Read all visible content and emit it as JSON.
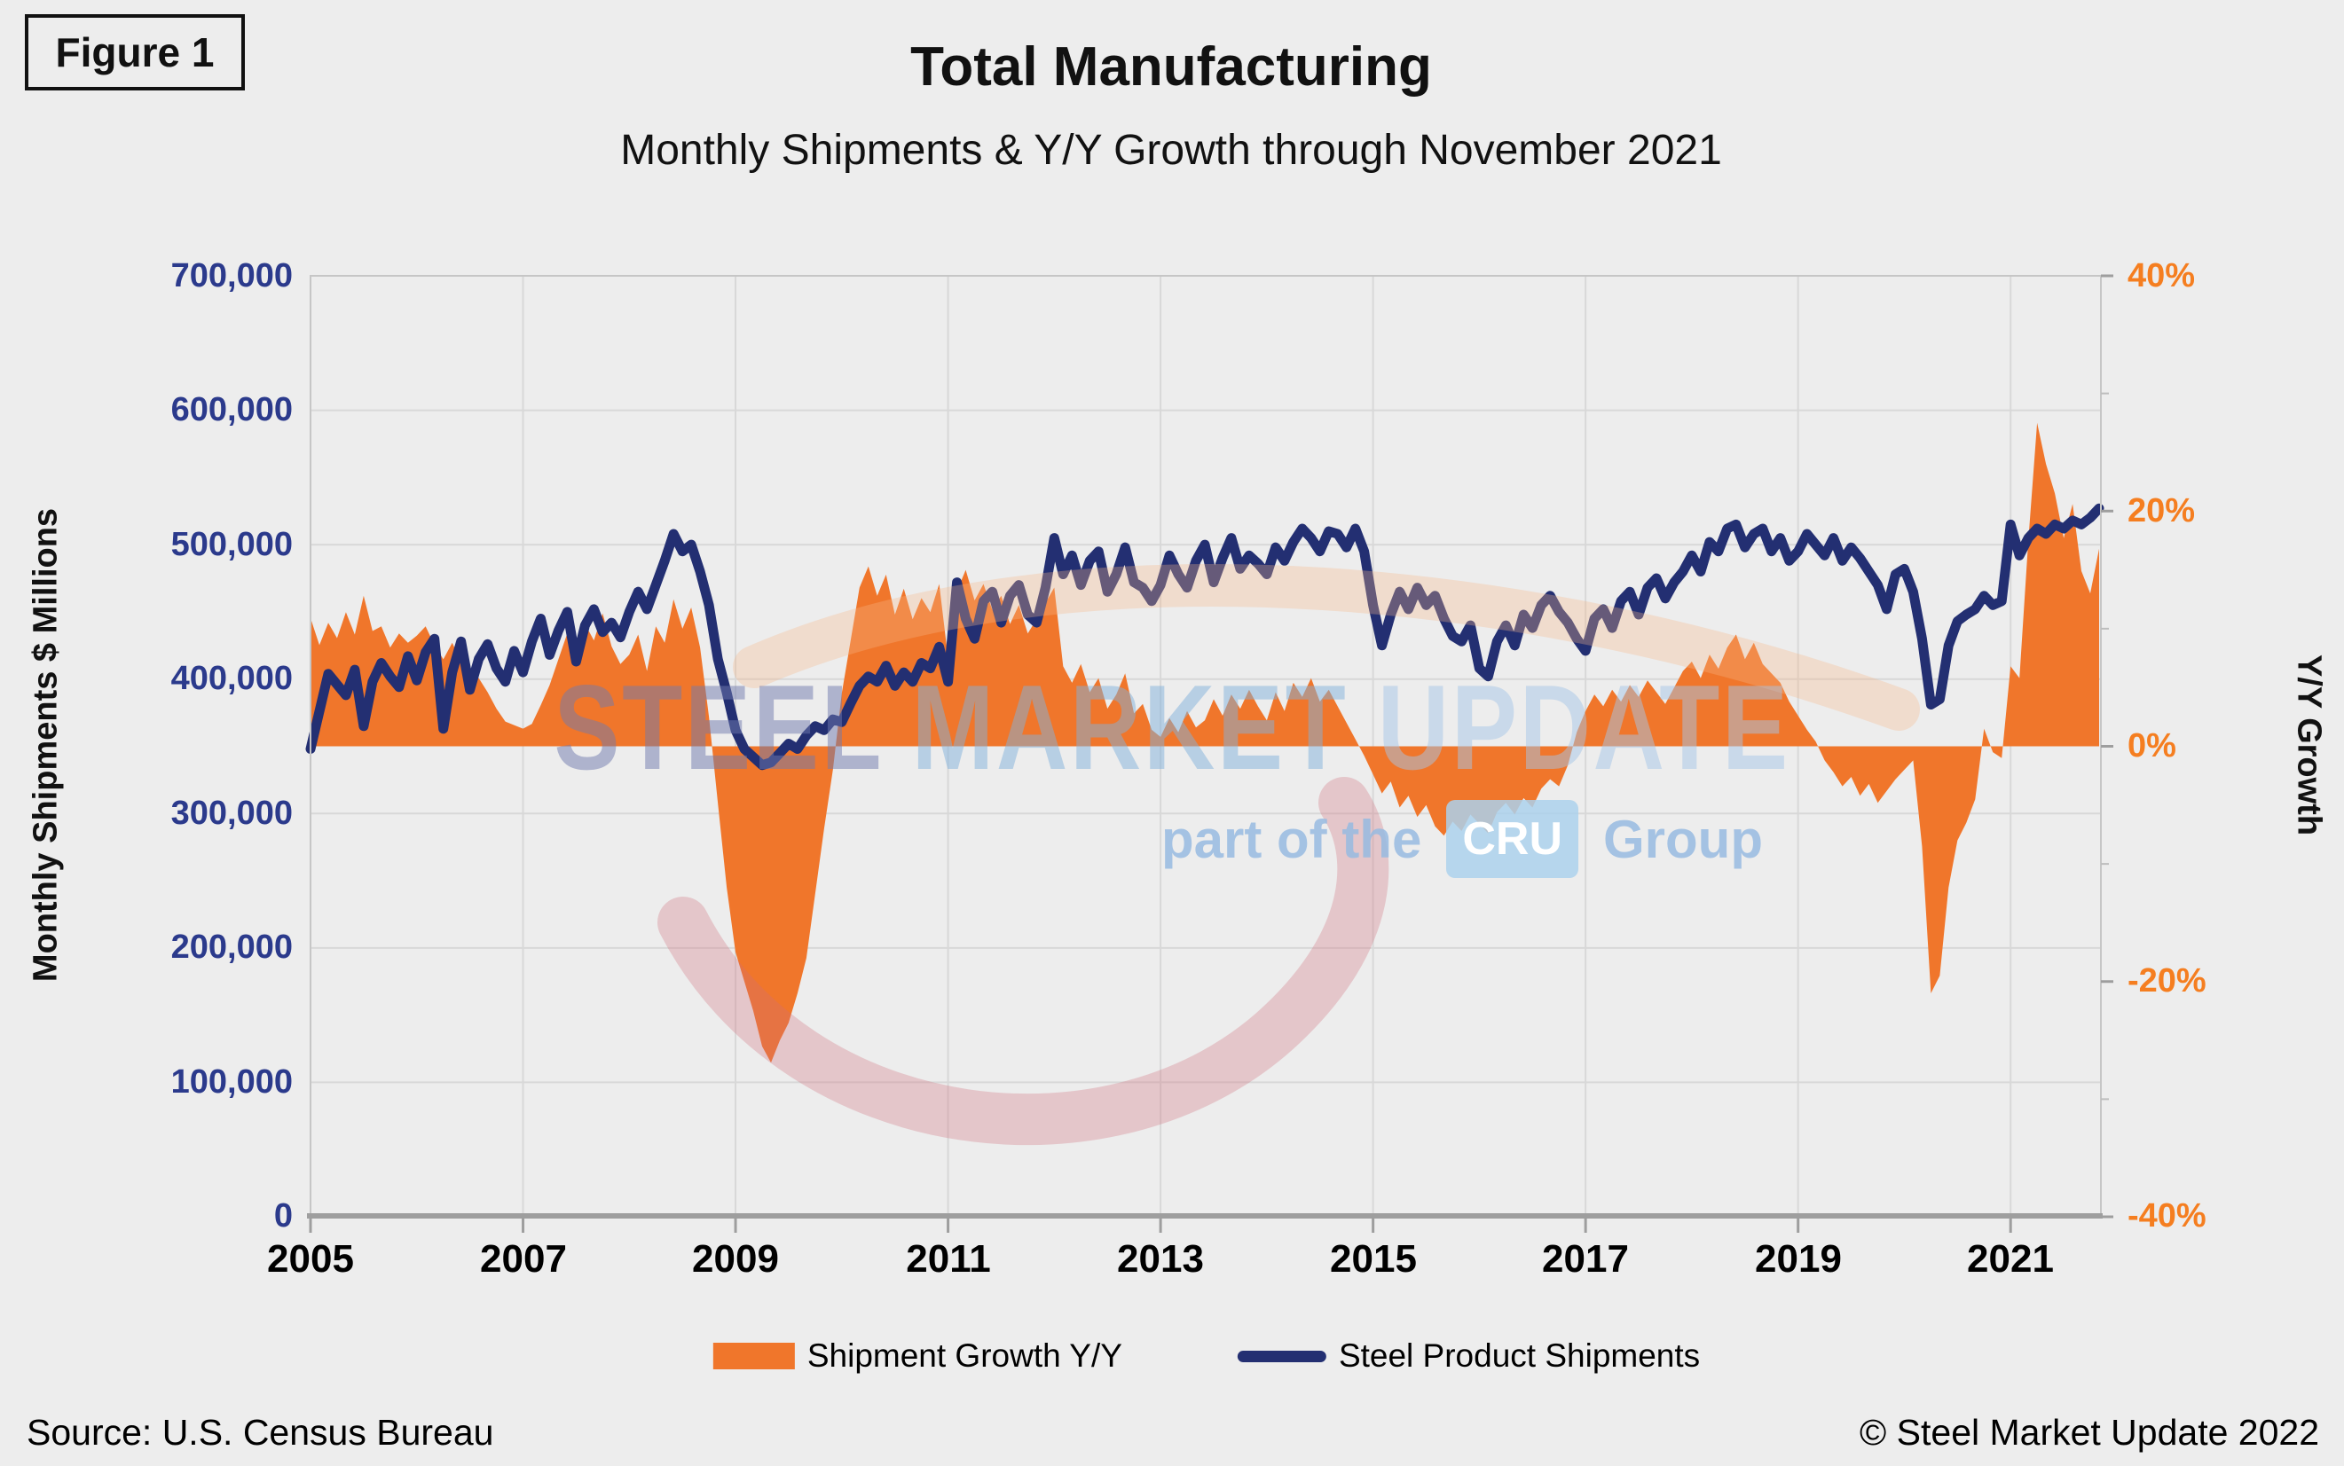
{
  "figure_label": "Figure 1",
  "title": "Total Manufacturing",
  "subtitle": "Monthly Shipments & Y/Y Growth through November 2021",
  "watermark": {
    "steel": "STEEL",
    "market": "MARKET",
    "update": "UPDATE",
    "part_of": "part of the",
    "cru": "CRU",
    "group": "Group"
  },
  "axes": {
    "left": {
      "title": "Monthly Shipments $ Millions",
      "ticks": [
        "700,000",
        "600,000",
        "500,000",
        "400,000",
        "300,000",
        "200,000",
        "100,000",
        "0"
      ]
    },
    "right": {
      "title": "Y/Y Growth",
      "ticks": [
        "40%",
        "20%",
        "0%",
        "-20%",
        "-40%"
      ]
    },
    "x": {
      "ticks": [
        "2005",
        "2007",
        "2009",
        "2011",
        "2013",
        "2015",
        "2017",
        "2019",
        "2021"
      ]
    }
  },
  "legend": {
    "growth": {
      "label": "Shipment Growth Y/Y"
    },
    "shipments": {
      "label": "Steel Product Shipments"
    }
  },
  "footer": {
    "source": "Source: U.S. Census Bureau",
    "copyright": "© Steel Market Update 2022"
  },
  "colors": {
    "background": "#EDEDED",
    "gridline": "#D8D8D8",
    "plot_border": "#C6C6C6",
    "axis_line": "#9E9E9E",
    "shipments_line": "#232F72",
    "growth_area": "#F0762B",
    "left_tick_text": "#2B3A8C",
    "right_tick_text": "#F57E20"
  },
  "chart_data": {
    "type": "combo",
    "title": "Total Manufacturing",
    "subtitle": "Monthly Shipments & Y/Y Growth through November 2021",
    "frequency": "monthly",
    "x_start": "2005-01",
    "x_end": "2021-11",
    "x_axis": {
      "tick_years": [
        2005,
        2007,
        2009,
        2011,
        2013,
        2015,
        2017,
        2019,
        2021
      ]
    },
    "left_axis": {
      "label": "Monthly Shipments $ Millions",
      "range": [
        0,
        700000
      ],
      "gridline_step": 100000
    },
    "right_axis": {
      "label": "Y/Y Growth",
      "range": [
        -40,
        40
      ],
      "tick_step": 20,
      "minor_tick_step": 10
    },
    "legend_position": "bottom",
    "grid": true,
    "series": [
      {
        "name": "Shipment Growth Y/Y",
        "type": "area",
        "axis": "right",
        "unit": "%",
        "color": "#F0762B",
        "values": [
          10.9,
          8.6,
          10.5,
          9.2,
          11.4,
          9.5,
          12.8,
          9.8,
          10.2,
          8.4,
          9.6,
          8.8,
          9.4,
          10.2,
          8.6,
          7.4,
          8.8,
          7.2,
          6.5,
          5.8,
          4.6,
          3.2,
          2.1,
          1.8,
          1.5,
          1.9,
          3.5,
          5.2,
          7.4,
          9.6,
          8.2,
          10.4,
          9.0,
          11.3,
          8.5,
          7.0,
          7.8,
          9.5,
          6.4,
          10.2,
          8.8,
          12.5,
          10.0,
          11.8,
          8.4,
          2.5,
          -4.8,
          -12.0,
          -17.5,
          -20.0,
          -22.5,
          -25.5,
          -26.9,
          -25.0,
          -23.5,
          -21.0,
          -18.0,
          -12.5,
          -7.0,
          -2.0,
          4.5,
          9.0,
          13.5,
          15.3,
          12.8,
          14.6,
          11.2,
          13.4,
          10.8,
          12.6,
          11.4,
          13.8,
          7.5,
          13.2,
          15.0,
          12.4,
          13.8,
          11.6,
          12.8,
          10.4,
          12.0,
          9.6,
          10.8,
          12.2,
          13.5,
          6.8,
          5.4,
          7.0,
          4.6,
          5.8,
          3.2,
          4.4,
          6.2,
          2.8,
          3.6,
          1.4,
          0.8,
          2.4,
          1.2,
          3.0,
          1.6,
          2.2,
          4.0,
          2.6,
          4.4,
          3.2,
          4.8,
          3.4,
          2.2,
          4.6,
          3.0,
          5.4,
          4.2,
          5.8,
          3.8,
          4.8,
          3.4,
          2.0,
          0.6,
          -0.8,
          -2.4,
          -4.0,
          -3.0,
          -5.2,
          -4.2,
          -6.0,
          -5.0,
          -6.8,
          -7.6,
          -6.4,
          -7.2,
          -5.8,
          -6.6,
          -7.4,
          -5.6,
          -4.8,
          -5.8,
          -4.4,
          -5.2,
          -3.6,
          -2.8,
          -3.4,
          -1.6,
          1.2,
          3.0,
          4.4,
          3.4,
          4.8,
          3.8,
          5.2,
          4.2,
          5.6,
          4.6,
          3.6,
          5.0,
          6.4,
          7.2,
          5.8,
          7.8,
          6.6,
          8.4,
          9.5,
          7.4,
          8.8,
          7.0,
          6.2,
          5.4,
          3.8,
          2.6,
          1.4,
          0.4,
          -1.2,
          -2.2,
          -3.4,
          -2.6,
          -4.2,
          -3.2,
          -4.8,
          -3.8,
          -2.8,
          -2.0,
          -1.2,
          -8.5,
          -21.0,
          -19.5,
          -12.0,
          -8.0,
          -6.5,
          -4.5,
          1.5,
          -0.5,
          -1.0,
          6.8,
          5.8,
          17.5,
          27.5,
          24.0,
          21.5,
          17.7,
          20.6,
          14.9,
          13.0,
          16.8
        ]
      },
      {
        "name": "Steel Product Shipments",
        "type": "line",
        "axis": "left",
        "unit": "$ Millions",
        "color": "#232F72",
        "values": [
          348000,
          376000,
          404000,
          396000,
          388000,
          407000,
          365000,
          398000,
          412000,
          402000,
          394000,
          417000,
          399000,
          420000,
          430000,
          363000,
          405000,
          428000,
          392000,
          415000,
          426000,
          408000,
          398000,
          421000,
          405000,
          428000,
          445000,
          418000,
          436000,
          450000,
          413000,
          440000,
          452000,
          435000,
          442000,
          431000,
          450000,
          465000,
          452000,
          470000,
          488000,
          508000,
          495000,
          500000,
          480000,
          455000,
          415000,
          390000,
          362000,
          348000,
          342000,
          336000,
          338000,
          345000,
          352000,
          348000,
          358000,
          365000,
          362000,
          370000,
          368000,
          382000,
          395000,
          402000,
          398000,
          410000,
          395000,
          405000,
          398000,
          412000,
          408000,
          424000,
          398000,
          472000,
          445000,
          430000,
          458000,
          465000,
          442000,
          462000,
          470000,
          448000,
          442000,
          468000,
          505000,
          478000,
          492000,
          470000,
          488000,
          495000,
          465000,
          478000,
          498000,
          472000,
          468000,
          458000,
          470000,
          492000,
          478000,
          468000,
          488000,
          500000,
          472000,
          490000,
          505000,
          482000,
          492000,
          486000,
          478000,
          498000,
          488000,
          502000,
          512000,
          505000,
          495000,
          510000,
          508000,
          498000,
          512000,
          495000,
          455000,
          425000,
          448000,
          465000,
          452000,
          468000,
          455000,
          462000,
          445000,
          432000,
          428000,
          440000,
          408000,
          402000,
          428000,
          440000,
          425000,
          448000,
          438000,
          455000,
          462000,
          450000,
          442000,
          430000,
          421000,
          445000,
          452000,
          438000,
          458000,
          465000,
          448000,
          468000,
          475000,
          460000,
          472000,
          480000,
          492000,
          480000,
          502000,
          495000,
          512000,
          515000,
          498000,
          508000,
          512000,
          495000,
          505000,
          488000,
          495000,
          508000,
          500000,
          492000,
          505000,
          488000,
          498000,
          490000,
          480000,
          470000,
          452000,
          478000,
          482000,
          465000,
          430000,
          381000,
          385000,
          425000,
          443000,
          448000,
          452000,
          462000,
          455000,
          458000,
          515000,
          492000,
          505000,
          512000,
          508000,
          515000,
          512000,
          518000,
          515000,
          520000,
          527000
        ]
      }
    ]
  }
}
